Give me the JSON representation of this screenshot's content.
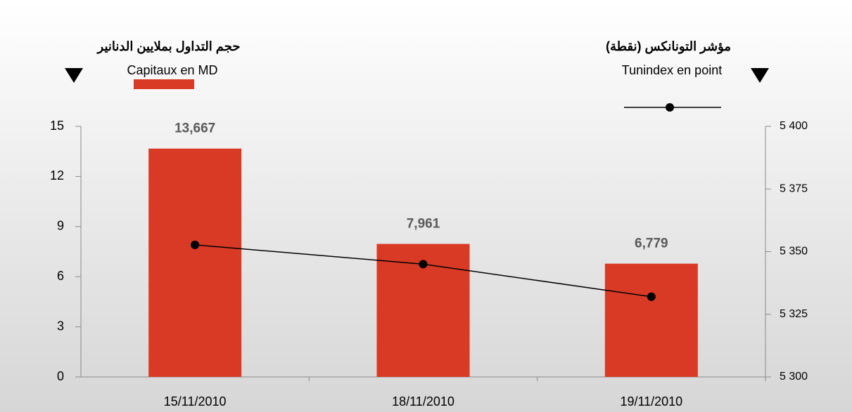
{
  "chart_data": {
    "type": "bar",
    "y_label": "حجم التداول بملايين الدنانير",
    "y2_label": "مؤشر التونانكس (نقطة)",
    "categories": [
      "15/11/2010",
      "18/11/2010",
      "19/11/2010"
    ],
    "series": [
      {
        "name": "Capitaux en MD",
        "type": "bar",
        "color": "#d93a26",
        "values": [
          13.667,
          7.961,
          6.779
        ],
        "value_labels": [
          "13,667",
          "7,961",
          "6,779"
        ]
      },
      {
        "name": "Tunindex en point",
        "type": "line",
        "axis": "y2",
        "color": "#000000",
        "values": [
          5352.7,
          5345,
          5332
        ]
      }
    ],
    "ylim": [
      0,
      15
    ],
    "yticks": [
      0,
      3,
      6,
      9,
      12,
      15
    ],
    "y2lim": [
      5300,
      5400
    ],
    "y2ticks": [
      {
        "value": 5300,
        "label": "5 300"
      },
      {
        "value": 5325,
        "label": "5 325"
      },
      {
        "value": 5350,
        "label": "5 350"
      },
      {
        "value": 5375,
        "label": "5 375"
      },
      {
        "value": 5400,
        "label": "5 400"
      }
    ]
  }
}
